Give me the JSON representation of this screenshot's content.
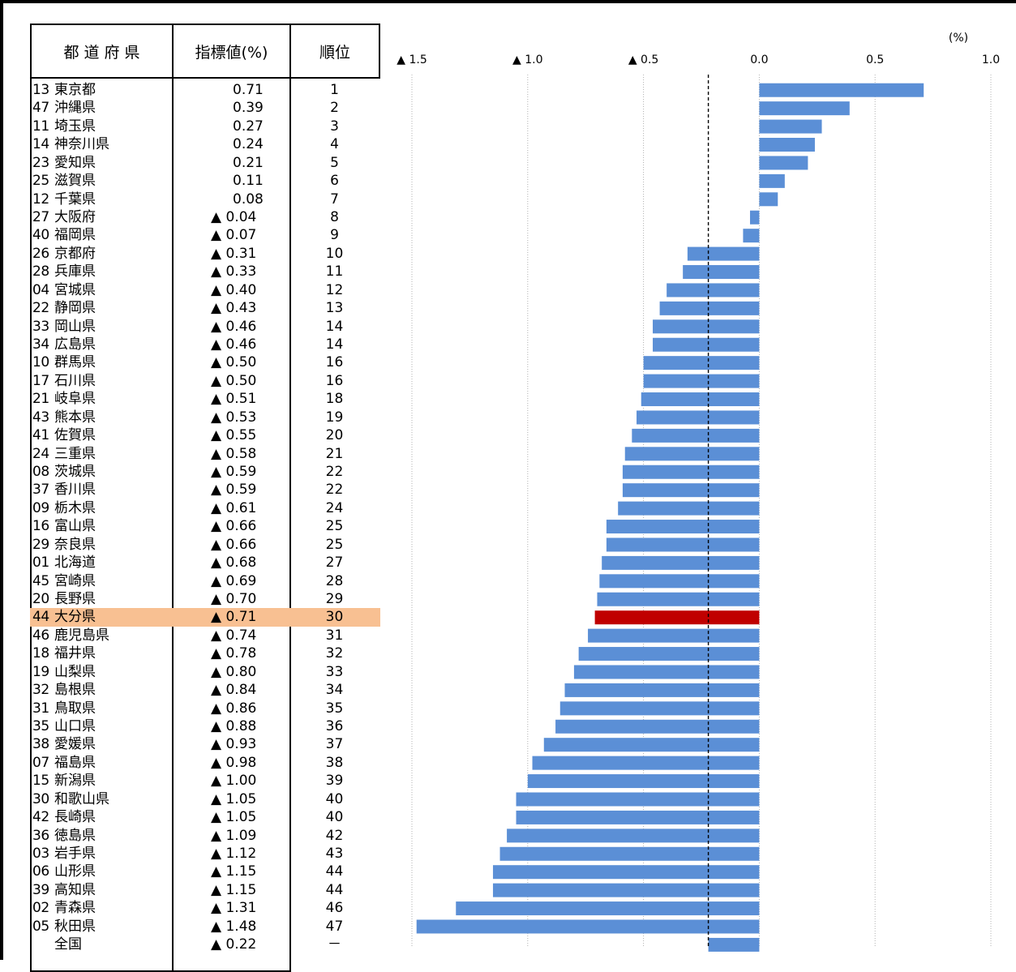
{
  "table_headers": {
    "prefecture": "都 道 府 県",
    "indicator": "指標値(%)",
    "rank": "順位"
  },
  "highlight_color": "#f8c092",
  "bar_color": "#5b8fd6",
  "highlight_bar_color": "#c00000",
  "rows": [
    {
      "code": "13",
      "name": "東京都",
      "value": "0.71",
      "rank": "1"
    },
    {
      "code": "47",
      "name": "沖縄県",
      "value": "0.39",
      "rank": "2"
    },
    {
      "code": "11",
      "name": "埼玉県",
      "value": "0.27",
      "rank": "3"
    },
    {
      "code": "14",
      "name": "神奈川県",
      "value": "0.24",
      "rank": "4"
    },
    {
      "code": "23",
      "name": "愛知県",
      "value": "0.21",
      "rank": "5"
    },
    {
      "code": "25",
      "name": "滋賀県",
      "value": "0.11",
      "rank": "6"
    },
    {
      "code": "12",
      "name": "千葉県",
      "value": "0.08",
      "rank": "7"
    },
    {
      "code": "27",
      "name": "大阪府",
      "value": "▲ 0.04",
      "rank": "8"
    },
    {
      "code": "40",
      "name": "福岡県",
      "value": "▲ 0.07",
      "rank": "9"
    },
    {
      "code": "26",
      "name": "京都府",
      "value": "▲ 0.31",
      "rank": "10"
    },
    {
      "code": "28",
      "name": "兵庫県",
      "value": "▲ 0.33",
      "rank": "11"
    },
    {
      "code": "04",
      "name": "宮城県",
      "value": "▲ 0.40",
      "rank": "12"
    },
    {
      "code": "22",
      "name": "静岡県",
      "value": "▲ 0.43",
      "rank": "13"
    },
    {
      "code": "33",
      "name": "岡山県",
      "value": "▲ 0.46",
      "rank": "14"
    },
    {
      "code": "34",
      "name": "広島県",
      "value": "▲ 0.46",
      "rank": "14"
    },
    {
      "code": "10",
      "name": "群馬県",
      "value": "▲ 0.50",
      "rank": "16"
    },
    {
      "code": "17",
      "name": "石川県",
      "value": "▲ 0.50",
      "rank": "16"
    },
    {
      "code": "21",
      "name": "岐阜県",
      "value": "▲ 0.51",
      "rank": "18"
    },
    {
      "code": "43",
      "name": "熊本県",
      "value": "▲ 0.53",
      "rank": "19"
    },
    {
      "code": "41",
      "name": "佐賀県",
      "value": "▲ 0.55",
      "rank": "20"
    },
    {
      "code": "24",
      "name": "三重県",
      "value": "▲ 0.58",
      "rank": "21"
    },
    {
      "code": "08",
      "name": "茨城県",
      "value": "▲ 0.59",
      "rank": "22"
    },
    {
      "code": "37",
      "name": "香川県",
      "value": "▲ 0.59",
      "rank": "22"
    },
    {
      "code": "09",
      "name": "栃木県",
      "value": "▲ 0.61",
      "rank": "24"
    },
    {
      "code": "16",
      "name": "富山県",
      "value": "▲ 0.66",
      "rank": "25"
    },
    {
      "code": "29",
      "name": "奈良県",
      "value": "▲ 0.66",
      "rank": "25"
    },
    {
      "code": "01",
      "name": "北海道",
      "value": "▲ 0.68",
      "rank": "27"
    },
    {
      "code": "45",
      "name": "宮崎県",
      "value": "▲ 0.69",
      "rank": "28"
    },
    {
      "code": "20",
      "name": "長野県",
      "value": "▲ 0.70",
      "rank": "29"
    },
    {
      "code": "44",
      "name": "大分県",
      "value": "▲ 0.71",
      "rank": "30",
      "highlight": true
    },
    {
      "code": "46",
      "name": "鹿児島県",
      "value": "▲ 0.74",
      "rank": "31"
    },
    {
      "code": "18",
      "name": "福井県",
      "value": "▲ 0.78",
      "rank": "32"
    },
    {
      "code": "19",
      "name": "山梨県",
      "value": "▲ 0.80",
      "rank": "33"
    },
    {
      "code": "32",
      "name": "島根県",
      "value": "▲ 0.84",
      "rank": "34"
    },
    {
      "code": "31",
      "name": "鳥取県",
      "value": "▲ 0.86",
      "rank": "35"
    },
    {
      "code": "35",
      "name": "山口県",
      "value": "▲ 0.88",
      "rank": "36"
    },
    {
      "code": "38",
      "name": "愛媛県",
      "value": "▲ 0.93",
      "rank": "37"
    },
    {
      "code": "07",
      "name": "福島県",
      "value": "▲ 0.98",
      "rank": "38"
    },
    {
      "code": "15",
      "name": "新潟県",
      "value": "▲ 1.00",
      "rank": "39"
    },
    {
      "code": "30",
      "name": "和歌山県",
      "value": "▲ 1.05",
      "rank": "40"
    },
    {
      "code": "42",
      "name": "長崎県",
      "value": "▲ 1.05",
      "rank": "40"
    },
    {
      "code": "36",
      "name": "徳島県",
      "value": "▲ 1.09",
      "rank": "42"
    },
    {
      "code": "03",
      "name": "岩手県",
      "value": "▲ 1.12",
      "rank": "43"
    },
    {
      "code": "06",
      "name": "山形県",
      "value": "▲ 1.15",
      "rank": "44"
    },
    {
      "code": "39",
      "name": "高知県",
      "value": "▲ 1.15",
      "rank": "44"
    },
    {
      "code": "02",
      "name": "青森県",
      "value": "▲ 1.31",
      "rank": "46"
    },
    {
      "code": "05",
      "name": "秋田県",
      "value": "▲ 1.48",
      "rank": "47"
    },
    {
      "code": "",
      "name": "全国",
      "value": "▲ 0.22",
      "rank": "－"
    }
  ],
  "chart_data": {
    "type": "bar",
    "orientation": "horizontal",
    "unit_label": "(%)",
    "xlim": [
      -1.5,
      1.0
    ],
    "xticks": [
      {
        "value": -1.5,
        "label": "▲ 1.5"
      },
      {
        "value": -1.0,
        "label": "▲ 1.0"
      },
      {
        "value": -0.5,
        "label": "▲ 0.5"
      },
      {
        "value": 0.0,
        "label": "0.0"
      },
      {
        "value": 0.5,
        "label": "0.5"
      },
      {
        "value": 1.0,
        "label": "1.0"
      }
    ],
    "reference_line": -0.22,
    "categories": [
      "東京都",
      "沖縄県",
      "埼玉県",
      "神奈川県",
      "愛知県",
      "滋賀県",
      "千葉県",
      "大阪府",
      "福岡県",
      "京都府",
      "兵庫県",
      "宮城県",
      "静岡県",
      "岡山県",
      "広島県",
      "群馬県",
      "石川県",
      "岐阜県",
      "熊本県",
      "佐賀県",
      "三重県",
      "茨城県",
      "香川県",
      "栃木県",
      "富山県",
      "奈良県",
      "北海道",
      "宮崎県",
      "長野県",
      "大分県",
      "鹿児島県",
      "福井県",
      "山梨県",
      "島根県",
      "鳥取県",
      "山口県",
      "愛媛県",
      "福島県",
      "新潟県",
      "和歌山県",
      "長崎県",
      "徳島県",
      "岩手県",
      "山形県",
      "高知県",
      "青森県",
      "秋田県",
      "全国"
    ],
    "values": [
      0.71,
      0.39,
      0.27,
      0.24,
      0.21,
      0.11,
      0.08,
      -0.04,
      -0.07,
      -0.31,
      -0.33,
      -0.4,
      -0.43,
      -0.46,
      -0.46,
      -0.5,
      -0.5,
      -0.51,
      -0.53,
      -0.55,
      -0.58,
      -0.59,
      -0.59,
      -0.61,
      -0.66,
      -0.66,
      -0.68,
      -0.69,
      -0.7,
      -0.71,
      -0.74,
      -0.78,
      -0.8,
      -0.84,
      -0.86,
      -0.88,
      -0.93,
      -0.98,
      -1.0,
      -1.05,
      -1.05,
      -1.09,
      -1.12,
      -1.15,
      -1.15,
      -1.31,
      -1.48,
      -0.22
    ],
    "highlight_index": 29
  }
}
